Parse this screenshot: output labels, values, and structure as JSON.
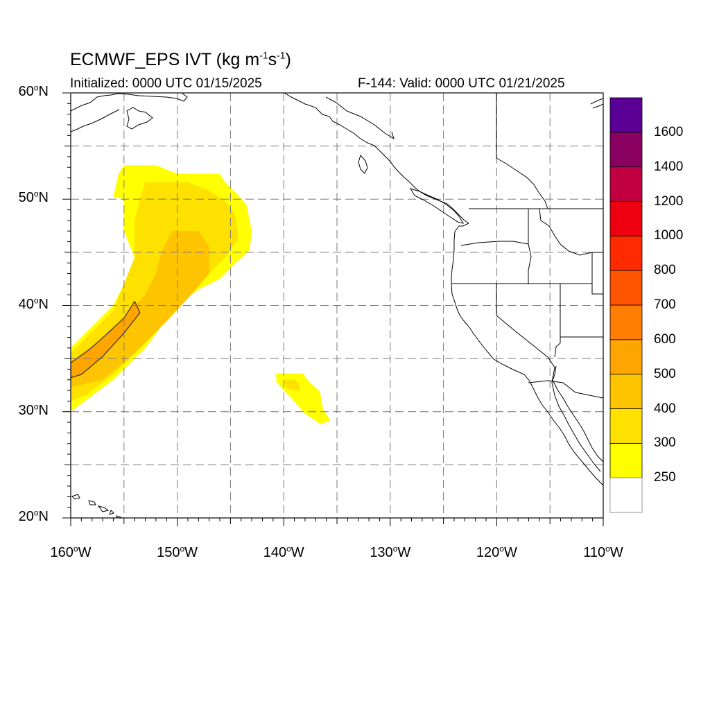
{
  "header": {
    "title_main": "ECMWF_EPS IVT (kg m",
    "title_exp1": "-1",
    "title_mid": "s",
    "title_exp2": "-1",
    "title_end": ")",
    "initialized": "Initialized: 0000 UTC 01/15/2025",
    "valid": "F-144: Valid: 0000 UTC 01/21/2025"
  },
  "axes": {
    "lon_range": [
      -160,
      -110
    ],
    "lat_range": [
      20,
      60
    ],
    "y_ticks": [
      {
        "value": 60,
        "deg": "60",
        "hem": "N"
      },
      {
        "value": 50,
        "deg": "50",
        "hem": "N"
      },
      {
        "value": 40,
        "deg": "40",
        "hem": "N"
      },
      {
        "value": 30,
        "deg": "30",
        "hem": "N"
      },
      {
        "value": 20,
        "deg": "20",
        "hem": "N"
      }
    ],
    "x_ticks": [
      {
        "value": -160,
        "deg": "160",
        "hem": "W"
      },
      {
        "value": -150,
        "deg": "150",
        "hem": "W"
      },
      {
        "value": -140,
        "deg": "140",
        "hem": "W"
      },
      {
        "value": -130,
        "deg": "130",
        "hem": "W"
      },
      {
        "value": -120,
        "deg": "120",
        "hem": "W"
      },
      {
        "value": -110,
        "deg": "110",
        "hem": "W"
      }
    ],
    "grid_spacing_deg": 5
  },
  "colorbar": {
    "levels": [
      "250",
      "300",
      "400",
      "500",
      "600",
      "700",
      "800",
      "1000",
      "1200",
      "1400",
      "1600"
    ],
    "colors": [
      "#ffffff",
      "#ffff00",
      "#ffe100",
      "#ffc400",
      "#ffa500",
      "#ff7d00",
      "#ff5500",
      "#ff2b00",
      "#ee0010",
      "#c00040",
      "#8a0060",
      "#5a0095"
    ]
  },
  "chart_data": {
    "type": "heatmap",
    "variable": "IVT",
    "units": "kg m-1 s-1",
    "regions": [
      {
        "ivt_min": 250,
        "polygon_lonlat": [
          [
            -155,
            53.2
          ],
          [
            -152,
            53.2
          ],
          [
            -150,
            52.4
          ],
          [
            -146,
            52.4
          ],
          [
            -145.5,
            51.6
          ],
          [
            -144.5,
            50.6
          ],
          [
            -143.5,
            49.5
          ],
          [
            -143,
            47
          ],
          [
            -143.2,
            45.2
          ],
          [
            -144.5,
            44
          ],
          [
            -146,
            42.5
          ],
          [
            -148,
            41.5
          ],
          [
            -150,
            40
          ],
          [
            -153,
            36
          ],
          [
            -156,
            33
          ],
          [
            -158,
            31.5
          ],
          [
            -160,
            30
          ],
          [
            -160,
            36
          ],
          [
            -158,
            38
          ],
          [
            -156,
            40
          ],
          [
            -155,
            42
          ],
          [
            -154,
            44.5
          ],
          [
            -155,
            47
          ],
          [
            -155,
            50
          ],
          [
            -156,
            50.2
          ],
          [
            -155.5,
            52.4
          ]
        ]
      },
      {
        "ivt_min": 300,
        "polygon_lonlat": [
          [
            -153,
            51.6
          ],
          [
            -149,
            51.6
          ],
          [
            -147,
            50.8
          ],
          [
            -145.5,
            49.8
          ],
          [
            -144.5,
            48.4
          ],
          [
            -144.3,
            46.2
          ],
          [
            -145.5,
            44.5
          ],
          [
            -147,
            43
          ],
          [
            -149,
            41.5
          ],
          [
            -151,
            39.5
          ],
          [
            -153.5,
            36
          ],
          [
            -156,
            33.5
          ],
          [
            -158.5,
            31.6
          ],
          [
            -160,
            31
          ],
          [
            -160,
            35.5
          ],
          [
            -158,
            37.5
          ],
          [
            -156,
            39.5
          ],
          [
            -155,
            42
          ],
          [
            -154,
            44.5
          ],
          [
            -154,
            48
          ],
          [
            -153.5,
            50
          ]
        ]
      },
      {
        "ivt_min": 400,
        "polygon_lonlat": [
          [
            -150.5,
            47
          ],
          [
            -148,
            47
          ],
          [
            -147,
            45.5
          ],
          [
            -147,
            43
          ],
          [
            -148.5,
            41.2
          ],
          [
            -151,
            38.5
          ],
          [
            -154,
            35.5
          ],
          [
            -157,
            33
          ],
          [
            -160,
            32.3
          ],
          [
            -160,
            34.7
          ],
          [
            -157.5,
            36.6
          ],
          [
            -155,
            39
          ],
          [
            -153,
            41
          ],
          [
            -152,
            43
          ],
          [
            -151.5,
            45
          ]
        ]
      },
      {
        "ivt_min": 500,
        "polygon_lonlat": [
          [
            -154,
            40.4
          ],
          [
            -153.5,
            39.3
          ],
          [
            -155,
            37.4
          ],
          [
            -157,
            35.2
          ],
          [
            -159,
            33.5
          ],
          [
            -160,
            33.2
          ],
          [
            -160,
            34.6
          ],
          [
            -158.3,
            35.8
          ],
          [
            -156.5,
            37.4
          ],
          [
            -155,
            38.8
          ]
        ]
      },
      {
        "ivt_min": 250,
        "polygon_lonlat": [
          [
            -140.7,
            33.6
          ],
          [
            -138.2,
            33.6
          ],
          [
            -137.6,
            32.8
          ],
          [
            -136.6,
            31.9
          ],
          [
            -136.3,
            30.2
          ],
          [
            -135.6,
            29.2
          ],
          [
            -136.5,
            28.8
          ],
          [
            -138,
            29.8
          ],
          [
            -139.5,
            31.5
          ],
          [
            -140.7,
            32.8
          ]
        ]
      },
      {
        "ivt_min": 300,
        "polygon_lonlat": [
          [
            -140,
            33
          ],
          [
            -138.8,
            33
          ],
          [
            -138.4,
            32
          ],
          [
            -139.8,
            32.2
          ]
        ]
      }
    ],
    "contour_500_lonlat": [
      [
        -154,
        40.4
      ],
      [
        -153.5,
        39.3
      ],
      [
        -155,
        37.4
      ],
      [
        -157,
        35.2
      ],
      [
        -159,
        33.5
      ],
      [
        -160,
        33.2
      ],
      [
        -160,
        34.6
      ],
      [
        -158.3,
        35.8
      ],
      [
        -156.5,
        37.4
      ],
      [
        -155,
        38.8
      ],
      [
        -154,
        40.4
      ]
    ]
  }
}
